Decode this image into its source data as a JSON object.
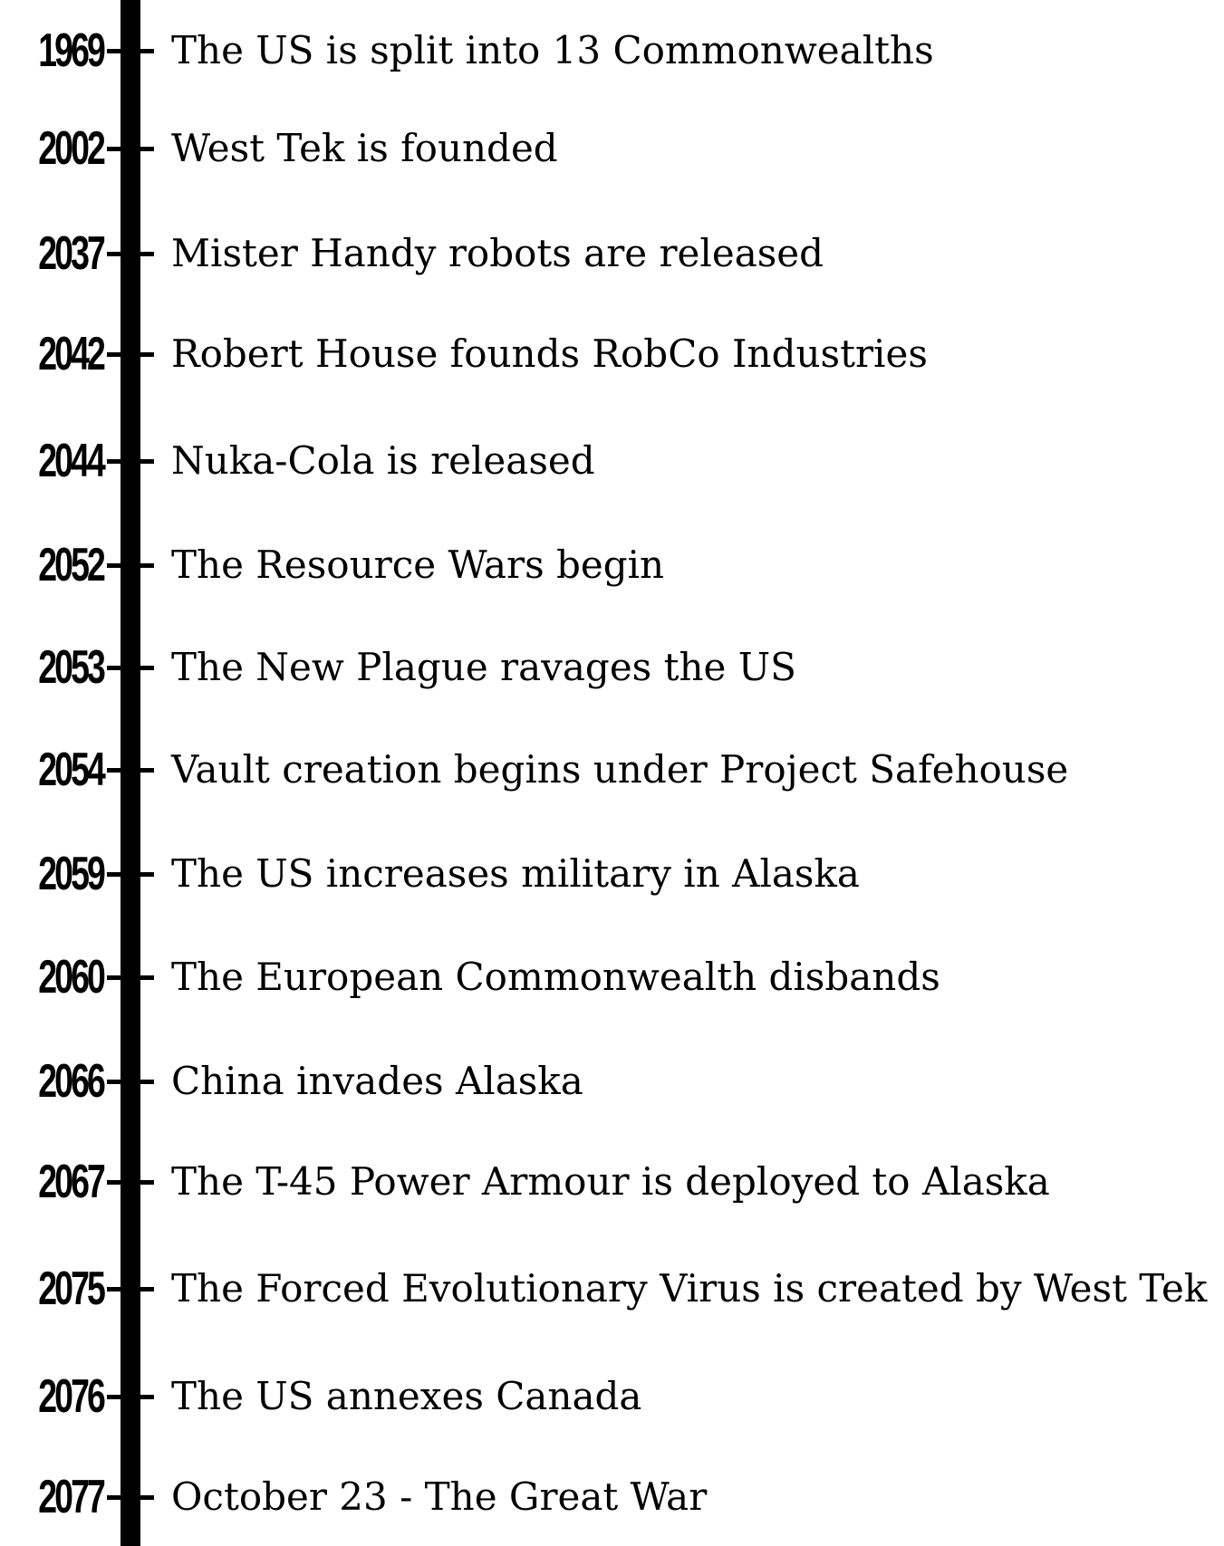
{
  "timeline": {
    "colors": {
      "line": "#000000",
      "text": "#000000",
      "background": "#ffffff"
    },
    "events": [
      {
        "year": "1969",
        "text": "The US is split into 13 Commonwealths"
      },
      {
        "year": "2002",
        "text": "West Tek is founded"
      },
      {
        "year": "2037",
        "text": "Mister Handy robots are released"
      },
      {
        "year": "2042",
        "text": "Robert House founds RobCo Industries"
      },
      {
        "year": "2044",
        "text": "Nuka-Cola is released"
      },
      {
        "year": "2052",
        "text": "The Resource Wars begin"
      },
      {
        "year": "2053",
        "text": "The New Plague ravages the US"
      },
      {
        "year": "2054",
        "text": "Vault creation begins under Project Safehouse"
      },
      {
        "year": "2059",
        "text": "The US increases military in Alaska"
      },
      {
        "year": "2060",
        "text": "The European Commonwealth disbands"
      },
      {
        "year": "2066",
        "text": "China invades Alaska"
      },
      {
        "year": "2067",
        "text": "The T-45 Power Armour is deployed to Alaska"
      },
      {
        "year": "2075",
        "text": "The Forced Evolutionary Virus is created by West Tek"
      },
      {
        "year": "2076",
        "text": "The US annexes Canada"
      },
      {
        "year": "2077",
        "text": "October 23 - The Great War"
      }
    ]
  }
}
